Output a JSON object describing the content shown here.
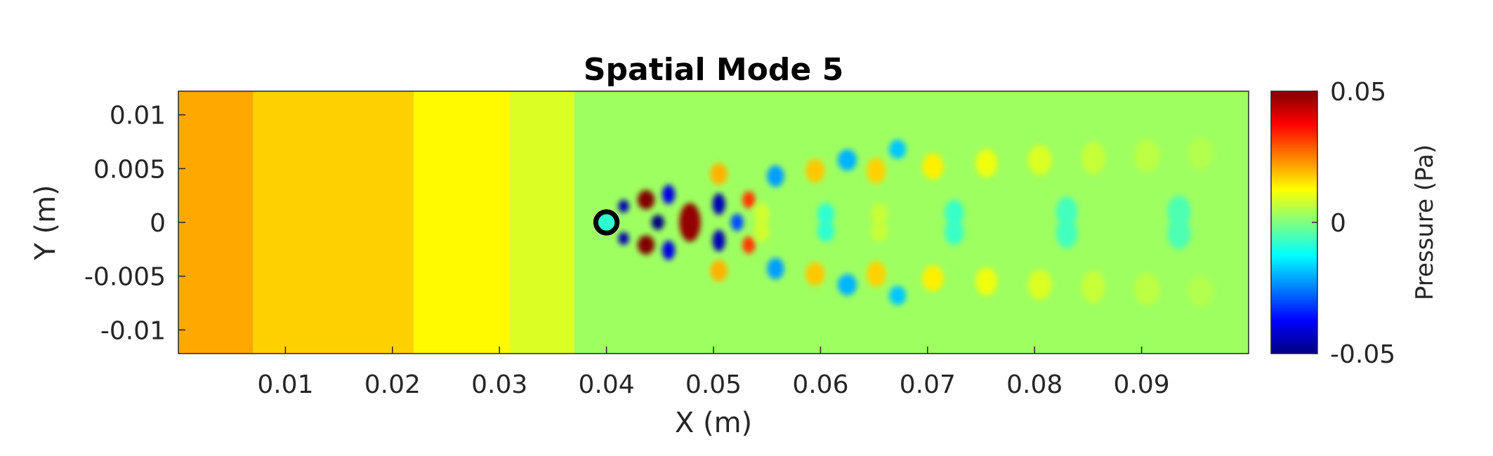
{
  "chart_data": {
    "type": "heatmap",
    "title": "Spatial Mode 5",
    "xlabel": "X (m)",
    "ylabel": "Y (m)",
    "xlim": [
      0,
      0.1
    ],
    "ylim": [
      -0.0122,
      0.0122
    ],
    "x_ticks": [
      0.01,
      0.02,
      0.03,
      0.04,
      0.05,
      0.06,
      0.07,
      0.08,
      0.09
    ],
    "x_tick_labels": [
      "0.01",
      "0.02",
      "0.03",
      "0.04",
      "0.05",
      "0.06",
      "0.07",
      "0.08",
      "0.09"
    ],
    "y_ticks": [
      0.01,
      0.005,
      0,
      -0.005,
      -0.01
    ],
    "y_tick_labels": [
      "0.01",
      "0.005",
      "0",
      "-0.005",
      "-0.01"
    ],
    "colorbar": {
      "label": "Pressure (Pa)",
      "colormap": "jet",
      "clim": [
        -0.05,
        0.05
      ],
      "ticks": [
        0.05,
        0,
        -0.05
      ],
      "tick_labels": [
        "0.05",
        "0",
        "-0.05"
      ]
    },
    "cylinder": {
      "x": 0.04,
      "y": 0,
      "diameter": 0.002
    },
    "background_bands": [
      {
        "x": [
          0,
          0.007
        ],
        "value": 0.021
      },
      {
        "x": [
          0.007,
          0.022
        ],
        "value": 0.017
      },
      {
        "x": [
          0.022,
          0.031
        ],
        "value": 0.013
      },
      {
        "x": [
          0.031,
          0.037
        ],
        "value": 0.009
      },
      {
        "x": [
          0.037,
          0.1
        ],
        "value": 0.003
      }
    ],
    "wake_structures": [
      {
        "x": 0.0437,
        "y": 0.0021,
        "value": 0.05,
        "sx": 0.0008,
        "sy": 0.0009
      },
      {
        "x": 0.0437,
        "y": -0.0021,
        "value": 0.05,
        "sx": 0.0008,
        "sy": 0.0009
      },
      {
        "x": 0.0478,
        "y": 0,
        "value": 0.048,
        "sx": 0.001,
        "sy": 0.0018
      },
      {
        "x": 0.0416,
        "y": 0.0015,
        "value": -0.045,
        "sx": 0.0005,
        "sy": 0.0006
      },
      {
        "x": 0.0416,
        "y": -0.0015,
        "value": -0.045,
        "sx": 0.0005,
        "sy": 0.0006
      },
      {
        "x": 0.0448,
        "y": 0,
        "value": -0.05,
        "sx": 0.0006,
        "sy": 0.0007
      },
      {
        "x": 0.0458,
        "y": 0.0026,
        "value": -0.04,
        "sx": 0.0006,
        "sy": 0.0009
      },
      {
        "x": 0.0458,
        "y": -0.0026,
        "value": -0.04,
        "sx": 0.0006,
        "sy": 0.0009
      },
      {
        "x": 0.0505,
        "y": 0.0017,
        "value": -0.045,
        "sx": 0.0006,
        "sy": 0.001
      },
      {
        "x": 0.0505,
        "y": -0.0017,
        "value": -0.045,
        "sx": 0.0006,
        "sy": 0.001
      },
      {
        "x": 0.0533,
        "y": 0.0021,
        "value": 0.032,
        "sx": 0.0006,
        "sy": 0.0008
      },
      {
        "x": 0.0533,
        "y": -0.0021,
        "value": 0.032,
        "sx": 0.0006,
        "sy": 0.0008
      },
      {
        "x": 0.0522,
        "y": 0,
        "value": -0.03,
        "sx": 0.0006,
        "sy": 0.0008
      },
      {
        "x": 0.0505,
        "y": 0.0045,
        "value": 0.02,
        "sx": 0.0008,
        "sy": 0.001
      },
      {
        "x": 0.0505,
        "y": -0.0045,
        "value": 0.02,
        "sx": 0.0008,
        "sy": 0.001
      },
      {
        "x": 0.0558,
        "y": 0.0043,
        "value": -0.022,
        "sx": 0.0008,
        "sy": 0.001
      },
      {
        "x": 0.0558,
        "y": -0.0043,
        "value": -0.022,
        "sx": 0.0008,
        "sy": 0.001
      },
      {
        "x": 0.0595,
        "y": 0.0048,
        "value": 0.018,
        "sx": 0.0009,
        "sy": 0.0011
      },
      {
        "x": 0.0595,
        "y": -0.0048,
        "value": 0.018,
        "sx": 0.0009,
        "sy": 0.0011
      },
      {
        "x": 0.0625,
        "y": 0.0058,
        "value": -0.02,
        "sx": 0.0009,
        "sy": 0.001
      },
      {
        "x": 0.0625,
        "y": -0.0058,
        "value": -0.02,
        "sx": 0.0009,
        "sy": 0.001
      },
      {
        "x": 0.0652,
        "y": 0.0048,
        "value": 0.017,
        "sx": 0.0009,
        "sy": 0.0012
      },
      {
        "x": 0.0652,
        "y": -0.0048,
        "value": 0.017,
        "sx": 0.0009,
        "sy": 0.0012
      },
      {
        "x": 0.0672,
        "y": 0.0068,
        "value": -0.018,
        "sx": 0.0008,
        "sy": 0.0009
      },
      {
        "x": 0.0672,
        "y": -0.0068,
        "value": -0.018,
        "sx": 0.0008,
        "sy": 0.0009
      },
      {
        "x": 0.0705,
        "y": 0.0052,
        "value": 0.014,
        "sx": 0.001,
        "sy": 0.0012
      },
      {
        "x": 0.0705,
        "y": -0.0052,
        "value": 0.014,
        "sx": 0.001,
        "sy": 0.0012
      },
      {
        "x": 0.0755,
        "y": 0.0055,
        "value": 0.011,
        "sx": 0.001,
        "sy": 0.0013
      },
      {
        "x": 0.0755,
        "y": -0.0055,
        "value": 0.011,
        "sx": 0.001,
        "sy": 0.0013
      },
      {
        "x": 0.0805,
        "y": 0.0058,
        "value": 0.009,
        "sx": 0.0011,
        "sy": 0.0014
      },
      {
        "x": 0.0805,
        "y": -0.0058,
        "value": 0.009,
        "sx": 0.0011,
        "sy": 0.0014
      },
      {
        "x": 0.0855,
        "y": 0.006,
        "value": 0.007,
        "sx": 0.0011,
        "sy": 0.0015
      },
      {
        "x": 0.0855,
        "y": -0.006,
        "value": 0.007,
        "sx": 0.0011,
        "sy": 0.0015
      },
      {
        "x": 0.0905,
        "y": 0.0062,
        "value": 0.006,
        "sx": 0.0012,
        "sy": 0.0015
      },
      {
        "x": 0.0905,
        "y": -0.0062,
        "value": 0.006,
        "sx": 0.0012,
        "sy": 0.0015
      },
      {
        "x": 0.0955,
        "y": 0.0064,
        "value": 0.005,
        "sx": 0.0012,
        "sy": 0.0015
      },
      {
        "x": 0.0955,
        "y": -0.0064,
        "value": 0.005,
        "sx": 0.0012,
        "sy": 0.0015
      },
      {
        "x": 0.0545,
        "y": 0.0008,
        "value": 0.008,
        "sx": 0.0007,
        "sy": 0.001
      },
      {
        "x": 0.0545,
        "y": -0.0008,
        "value": 0.008,
        "sx": 0.0007,
        "sy": 0.001
      },
      {
        "x": 0.0605,
        "y": 0.0008,
        "value": -0.008,
        "sx": 0.0008,
        "sy": 0.001
      },
      {
        "x": 0.0605,
        "y": -0.0008,
        "value": -0.008,
        "sx": 0.0008,
        "sy": 0.001
      },
      {
        "x": 0.0655,
        "y": 0.0008,
        "value": 0.007,
        "sx": 0.0008,
        "sy": 0.001
      },
      {
        "x": 0.0655,
        "y": -0.0008,
        "value": 0.007,
        "sx": 0.0008,
        "sy": 0.001
      },
      {
        "x": 0.0725,
        "y": 0.0009,
        "value": -0.007,
        "sx": 0.0009,
        "sy": 0.0012
      },
      {
        "x": 0.0725,
        "y": -0.0009,
        "value": -0.007,
        "sx": 0.0009,
        "sy": 0.0012
      },
      {
        "x": 0.083,
        "y": 0.001,
        "value": -0.006,
        "sx": 0.001,
        "sy": 0.0014
      },
      {
        "x": 0.083,
        "y": -0.001,
        "value": -0.006,
        "sx": 0.001,
        "sy": 0.0014
      },
      {
        "x": 0.0935,
        "y": 0.001,
        "value": -0.005,
        "sx": 0.0011,
        "sy": 0.0015
      },
      {
        "x": 0.0935,
        "y": -0.001,
        "value": -0.005,
        "sx": 0.0011,
        "sy": 0.0015
      }
    ]
  }
}
